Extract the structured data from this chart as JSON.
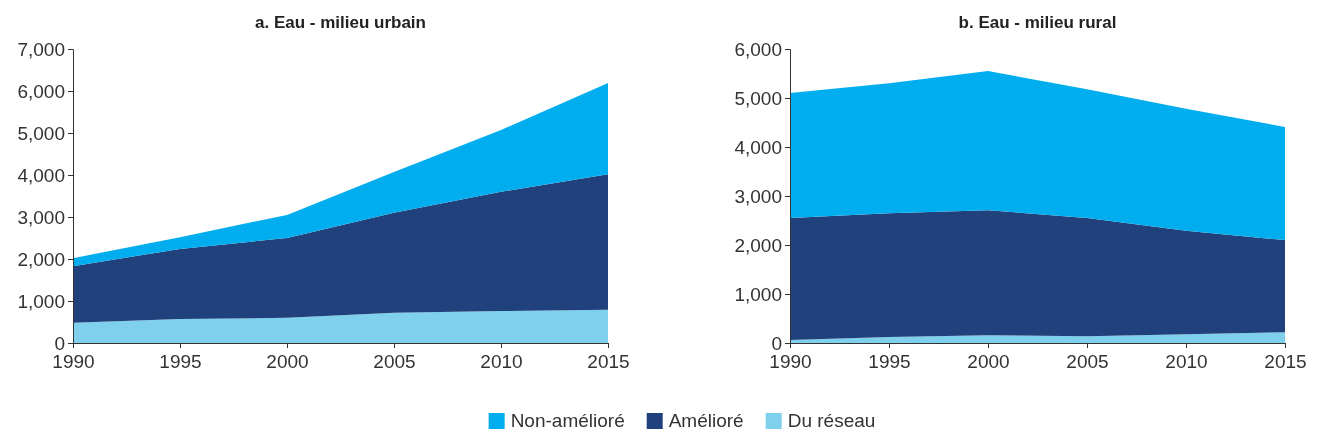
{
  "chart_data": [
    {
      "type": "area",
      "title": "a. Eau - milieu urbain",
      "stacked": true,
      "legend": "bottom",
      "x": [
        "1990",
        "1995",
        "2000",
        "2005",
        "2010",
        "2015"
      ],
      "xlim": [
        "1990",
        "2015"
      ],
      "xticks": [
        {
          "value": "1990",
          "label": "1990"
        },
        {
          "value": "1995",
          "label": "1995"
        },
        {
          "value": "2000",
          "label": "2000"
        },
        {
          "value": "2005",
          "label": "2005"
        },
        {
          "value": "2010",
          "label": "2010"
        },
        {
          "value": "2015",
          "label": "2015"
        }
      ],
      "ylim": [
        0,
        7000
      ],
      "yticks": [
        {
          "value": 0,
          "label": "0"
        },
        {
          "value": 1000,
          "label": "1,000"
        },
        {
          "value": 2000,
          "label": "2,000"
        },
        {
          "value": 3000,
          "label": "3,000"
        },
        {
          "value": 4000,
          "label": "4,000"
        },
        {
          "value": 5000,
          "label": "5,000"
        },
        {
          "value": 6000,
          "label": "6,000"
        },
        {
          "value": 7000,
          "label": "7,000"
        }
      ],
      "series": [
        {
          "name": "Du réseau",
          "color": "#7fd0ec",
          "values": [
            480,
            570,
            600,
            720,
            760,
            790
          ]
        },
        {
          "name": "Amélioré",
          "color": "#21417c",
          "values": [
            1350,
            1670,
            1900,
            2380,
            2840,
            3230
          ]
        },
        {
          "name": "Non-amélioré",
          "color": "#00aeef",
          "values": [
            190,
            280,
            550,
            970,
            1470,
            2170
          ]
        }
      ]
    },
    {
      "type": "area",
      "title": "b. Eau - milieu rural",
      "stacked": true,
      "legend": "bottom",
      "x": [
        "1990",
        "1995",
        "2000",
        "2005",
        "2010",
        "2015"
      ],
      "xlim": [
        "1990",
        "2015"
      ],
      "xticks": [
        {
          "value": "1990",
          "label": "1990"
        },
        {
          "value": "1995",
          "label": "1995"
        },
        {
          "value": "2000",
          "label": "2000"
        },
        {
          "value": "2005",
          "label": "2005"
        },
        {
          "value": "2010",
          "label": "2010"
        },
        {
          "value": "2015",
          "label": "2015"
        }
      ],
      "ylim": [
        0,
        6000
      ],
      "yticks": [
        {
          "value": 0,
          "label": "0"
        },
        {
          "value": 1000,
          "label": "1,000"
        },
        {
          "value": 2000,
          "label": "2,000"
        },
        {
          "value": 3000,
          "label": "3,000"
        },
        {
          "value": 4000,
          "label": "4,000"
        },
        {
          "value": 5000,
          "label": "5,000"
        },
        {
          "value": 6000,
          "label": "6,000"
        }
      ],
      "series": [
        {
          "name": "Du réseau",
          "color": "#7fd0ec",
          "values": [
            60,
            120,
            160,
            140,
            180,
            220
          ]
        },
        {
          "name": "Amélioré",
          "color": "#21417c",
          "values": [
            2490,
            2530,
            2550,
            2410,
            2110,
            1880
          ]
        },
        {
          "name": "Non-amélioré",
          "color": "#00aeef",
          "values": [
            2550,
            2650,
            2840,
            2630,
            2490,
            2310
          ]
        }
      ]
    }
  ]
}
